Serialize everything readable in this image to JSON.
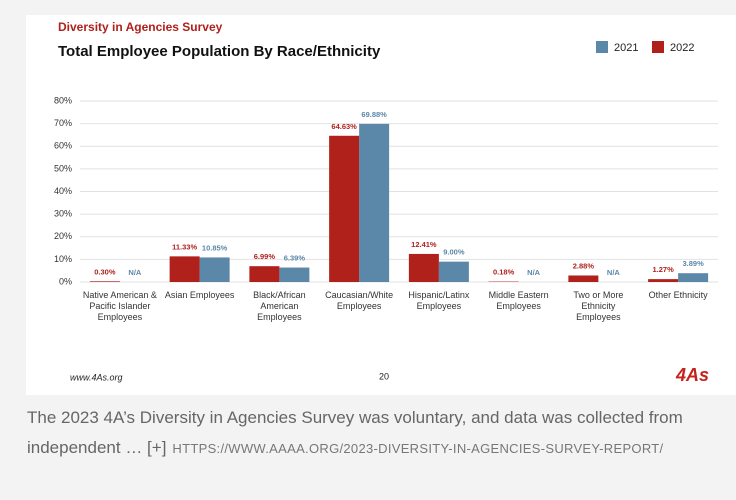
{
  "chart_data": {
    "type": "bar",
    "kicker": "Diversity in Agencies Survey",
    "title": "Total Employee Population By Race/Ethnicity",
    "categories": [
      "Native American & Pacific Islander Employees",
      "Asian Employees",
      "Black/African American Employees",
      "Caucasian/White Employees",
      "Hispanic/Latinx Employees",
      "Middle Eastern Employees",
      "Two or More Ethnicity Employees",
      "Other Ethnicity"
    ],
    "series": [
      {
        "name": "2021",
        "color": "#5b87a8",
        "values": [
          null,
          10.85,
          6.39,
          69.88,
          9.0,
          null,
          null,
          3.89
        ],
        "value_labels": [
          "N/A",
          "10.85%",
          "6.39%",
          "69.88%",
          "9.00%",
          "N/A",
          "N/A",
          "3.89%"
        ]
      },
      {
        "name": "2022",
        "color": "#b0211c",
        "values": [
          0.3,
          11.33,
          6.99,
          64.63,
          12.41,
          0.18,
          2.88,
          1.27
        ],
        "value_labels": [
          "0.30%",
          "11.33%",
          "6.99%",
          "64.63%",
          "12.41%",
          "0.18%",
          "2.88%",
          "1.27%"
        ]
      }
    ],
    "ylim": [
      0,
      80
    ],
    "yticks": [
      {
        "value": 0,
        "label": "0%"
      },
      {
        "value": 10,
        "label": "10%"
      },
      {
        "value": 20,
        "label": "20%"
      },
      {
        "value": 30,
        "label": "30%"
      },
      {
        "value": 40,
        "label": "40%"
      },
      {
        "value": 50,
        "label": "50%"
      },
      {
        "value": 60,
        "label": "60%"
      },
      {
        "value": 70,
        "label": "70%"
      },
      {
        "value": 80,
        "label": "80%"
      }
    ],
    "grid": true,
    "legend": "top-right"
  },
  "slide": {
    "footer_url": "www.4As.org",
    "page_number": "20",
    "logo": "4As"
  },
  "caption": {
    "text": "The 2023 4A’s Diversity in Agencies Survey was voluntary, and data was collected from independent … [+]",
    "link": "HTTPS://WWW.AAAA.ORG/2023-DIVERSITY-IN-AGENCIES-SURVEY-REPORT/"
  }
}
